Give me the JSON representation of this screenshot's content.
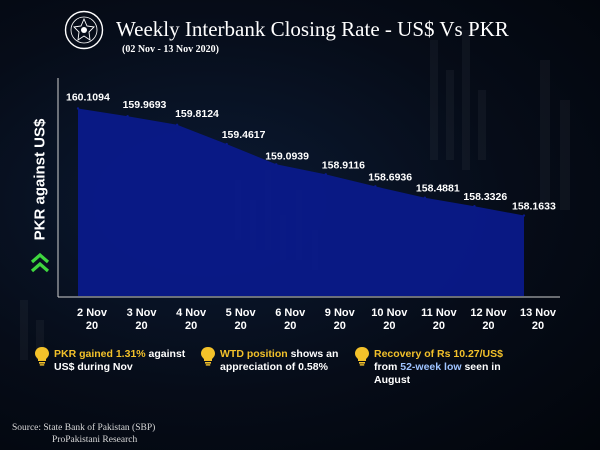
{
  "title": "Weekly Interbank Closing Rate - US$ Vs PKR",
  "subtitle": "(02 Nov - 13 Nov 2020)",
  "colors": {
    "fill": "#0a1a8c",
    "accent": "#f3c12a",
    "chevron": "#3fd63f",
    "highlight": "#9ec3ff"
  },
  "chart_data": {
    "type": "area",
    "title": "Weekly Interbank Closing Rate - US$ Vs PKR",
    "ylabel": "PKR against US$",
    "xlabel": "",
    "categories": [
      [
        "2 Nov",
        "20"
      ],
      [
        "3 Nov",
        "20"
      ],
      [
        "4 Nov",
        "20"
      ],
      [
        "5 Nov",
        "20"
      ],
      [
        "6 Nov",
        "20"
      ],
      [
        "9 Nov",
        "20"
      ],
      [
        "10 Nov",
        "20"
      ],
      [
        "11 Nov",
        "20"
      ],
      [
        "12 Nov",
        "20"
      ],
      [
        "13 Nov",
        "20"
      ]
    ],
    "values": [
      160.1094,
      159.9693,
      159.8124,
      159.4617,
      159.0939,
      158.9116,
      158.6936,
      158.4881,
      158.3326,
      158.1633
    ],
    "labels": [
      "160.1094",
      "159.9693",
      "159.8124",
      "159.4617",
      "159.0939",
      "158.9116",
      "158.6936",
      "158.4881",
      "158.3326",
      "158.1633"
    ],
    "ylim": [
      156.7,
      160.3
    ],
    "grid": false,
    "data_labels": true
  },
  "callouts": [
    {
      "icon": "lightbulb-icon",
      "parts": [
        {
          "text": "PKR gained 1.31%",
          "style": "yellow"
        },
        {
          "text": " against US$ during Nov",
          "style": "white"
        }
      ]
    },
    {
      "icon": "lightbulb-icon",
      "parts": [
        {
          "text": "WTD position",
          "style": "yellow"
        },
        {
          "text": " shows an appreciation of 0.58%",
          "style": "white"
        }
      ]
    },
    {
      "icon": "lightbulb-icon",
      "parts": [
        {
          "text": "Recovery of Rs 10.27/US$",
          "style": "yellow"
        },
        {
          "text": " from ",
          "style": "white"
        },
        {
          "text": "52-week low",
          "style": "blue"
        },
        {
          "text": " seen in August",
          "style": "white"
        }
      ]
    }
  ],
  "source": {
    "line1": "Source: State Bank of Pakistan (SBP)",
    "line2": "ProPakistani Research"
  }
}
